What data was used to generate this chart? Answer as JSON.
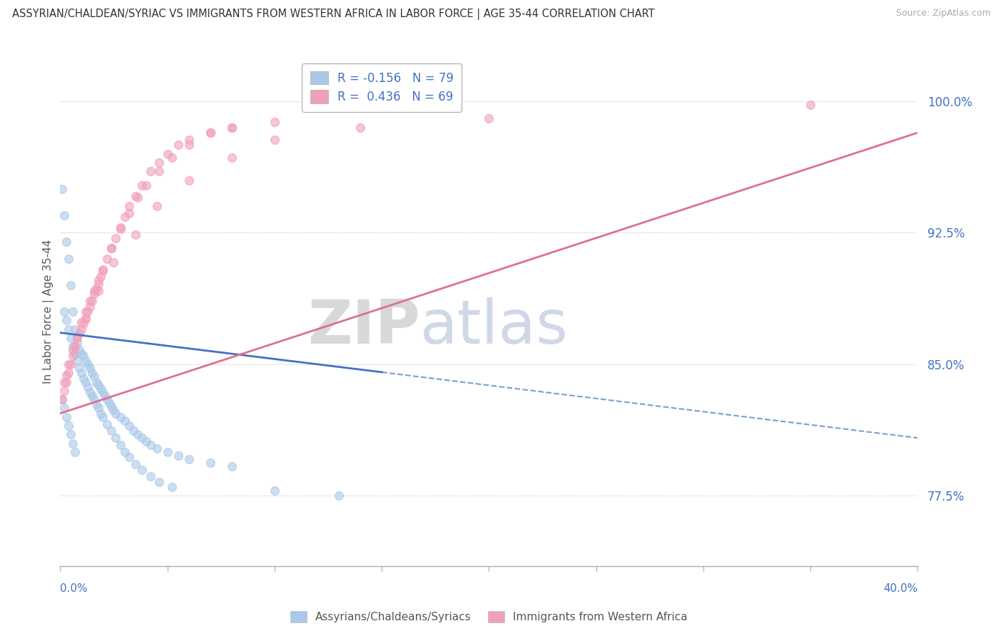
{
  "title": "ASSYRIAN/CHALDEAN/SYRIAC VS IMMIGRANTS FROM WESTERN AFRICA IN LABOR FORCE | AGE 35-44 CORRELATION CHART",
  "source": "Source: ZipAtlas.com",
  "ylabel": "In Labor Force | Age 35-44",
  "xlim": [
    0.0,
    0.4
  ],
  "ylim": [
    0.735,
    1.025
  ],
  "yticks": [
    0.775,
    0.85,
    0.925,
    1.0
  ],
  "ytick_labels": [
    "77.5%",
    "85.0%",
    "92.5%",
    "100.0%"
  ],
  "blue_color": "#aac8e8",
  "pink_color": "#f0a0b8",
  "blue_line_color": "#4472c4",
  "pink_line_color": "#e07090",
  "legend_r1": "R = -0.156",
  "legend_n1": "N = 79",
  "legend_r2": "R =  0.436",
  "legend_n2": "N = 69",
  "blue_trend": [
    0.0,
    0.868,
    0.4,
    0.808
  ],
  "pink_trend": [
    0.0,
    0.822,
    0.4,
    0.982
  ],
  "blue_x": [
    0.001,
    0.002,
    0.003,
    0.004,
    0.005,
    0.006,
    0.007,
    0.008,
    0.009,
    0.01,
    0.011,
    0.012,
    0.013,
    0.014,
    0.015,
    0.016,
    0.017,
    0.018,
    0.019,
    0.02,
    0.021,
    0.022,
    0.023,
    0.024,
    0.025,
    0.026,
    0.028,
    0.03,
    0.032,
    0.034,
    0.036,
    0.038,
    0.04,
    0.042,
    0.045,
    0.05,
    0.055,
    0.06,
    0.07,
    0.08,
    0.002,
    0.003,
    0.004,
    0.005,
    0.006,
    0.007,
    0.008,
    0.009,
    0.01,
    0.011,
    0.012,
    0.013,
    0.014,
    0.015,
    0.016,
    0.017,
    0.018,
    0.019,
    0.02,
    0.022,
    0.024,
    0.026,
    0.028,
    0.03,
    0.032,
    0.035,
    0.038,
    0.042,
    0.046,
    0.052,
    0.001,
    0.002,
    0.003,
    0.004,
    0.005,
    0.006,
    0.007,
    0.1,
    0.13
  ],
  "blue_y": [
    0.95,
    0.935,
    0.92,
    0.91,
    0.895,
    0.88,
    0.87,
    0.862,
    0.858,
    0.856,
    0.855,
    0.852,
    0.85,
    0.848,
    0.845,
    0.843,
    0.84,
    0.838,
    0.836,
    0.834,
    0.832,
    0.83,
    0.828,
    0.826,
    0.824,
    0.822,
    0.82,
    0.818,
    0.815,
    0.812,
    0.81,
    0.808,
    0.806,
    0.804,
    0.802,
    0.8,
    0.798,
    0.796,
    0.794,
    0.792,
    0.88,
    0.875,
    0.87,
    0.865,
    0.86,
    0.856,
    0.852,
    0.848,
    0.845,
    0.842,
    0.84,
    0.837,
    0.834,
    0.832,
    0.83,
    0.827,
    0.825,
    0.822,
    0.82,
    0.816,
    0.812,
    0.808,
    0.804,
    0.8,
    0.797,
    0.793,
    0.79,
    0.786,
    0.783,
    0.78,
    0.83,
    0.825,
    0.82,
    0.815,
    0.81,
    0.805,
    0.8,
    0.778,
    0.775
  ],
  "pink_x": [
    0.001,
    0.002,
    0.003,
    0.004,
    0.005,
    0.006,
    0.007,
    0.008,
    0.009,
    0.01,
    0.011,
    0.012,
    0.013,
    0.014,
    0.015,
    0.016,
    0.017,
    0.018,
    0.019,
    0.02,
    0.022,
    0.024,
    0.026,
    0.028,
    0.03,
    0.032,
    0.035,
    0.038,
    0.042,
    0.046,
    0.05,
    0.055,
    0.06,
    0.07,
    0.08,
    0.1,
    0.002,
    0.004,
    0.006,
    0.008,
    0.01,
    0.012,
    0.014,
    0.016,
    0.018,
    0.02,
    0.024,
    0.028,
    0.032,
    0.036,
    0.04,
    0.046,
    0.052,
    0.06,
    0.07,
    0.08,
    0.003,
    0.007,
    0.012,
    0.018,
    0.025,
    0.035,
    0.045,
    0.06,
    0.08,
    0.1,
    0.14,
    0.2,
    0.35
  ],
  "pink_y": [
    0.83,
    0.835,
    0.84,
    0.845,
    0.85,
    0.855,
    0.86,
    0.865,
    0.868,
    0.87,
    0.873,
    0.876,
    0.88,
    0.883,
    0.886,
    0.89,
    0.893,
    0.896,
    0.9,
    0.903,
    0.91,
    0.916,
    0.922,
    0.928,
    0.934,
    0.94,
    0.946,
    0.952,
    0.96,
    0.965,
    0.97,
    0.975,
    0.978,
    0.982,
    0.985,
    0.988,
    0.84,
    0.85,
    0.858,
    0.866,
    0.874,
    0.88,
    0.886,
    0.892,
    0.898,
    0.904,
    0.916,
    0.927,
    0.936,
    0.945,
    0.952,
    0.96,
    0.968,
    0.975,
    0.982,
    0.985,
    0.844,
    0.86,
    0.876,
    0.892,
    0.908,
    0.924,
    0.94,
    0.955,
    0.968,
    0.978,
    0.985,
    0.99,
    0.998
  ]
}
